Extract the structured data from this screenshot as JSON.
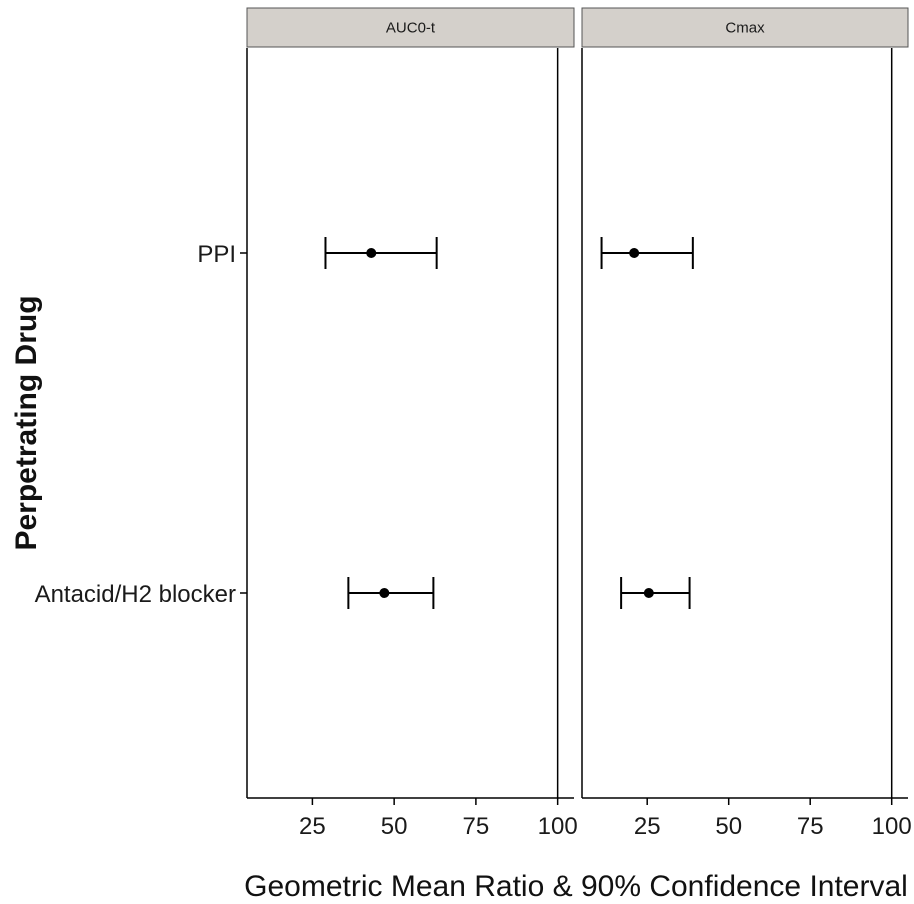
{
  "chart_data": {
    "type": "scatter",
    "title": "",
    "xlabel": "Geometric Mean Ratio & 90% Confidence Interval",
    "ylabel": "Perpetrating Drug",
    "xlim": [
      5,
      105
    ],
    "xticks": [
      25,
      50,
      75,
      100
    ],
    "grid": false,
    "legend": "none",
    "categories": [
      "PPI",
      "Antacid/H2 blocker"
    ],
    "colors": {
      "strip_fill": "#d4d0cb",
      "strip_border": "#555555",
      "points": "#000000",
      "background": "#ffffff"
    },
    "panels": [
      {
        "name": "AUC0-t",
        "series": [
          {
            "category": "PPI",
            "estimate": 43,
            "lower": 29,
            "upper": 63
          },
          {
            "category": "Antacid/H2 blocker",
            "estimate": 47,
            "lower": 36,
            "upper": 62
          }
        ]
      },
      {
        "name": "Cmax",
        "series": [
          {
            "category": "PPI",
            "estimate": 21,
            "lower": 11,
            "upper": 39
          },
          {
            "category": "Antacid/H2 blocker",
            "estimate": 25.5,
            "lower": 17,
            "upper": 38
          }
        ]
      }
    ]
  }
}
